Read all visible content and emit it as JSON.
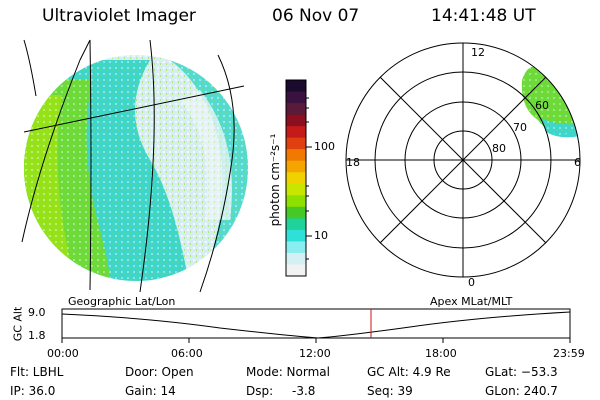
{
  "header": {
    "instrument": "Ultraviolet Imager",
    "date": "06 Nov 07",
    "time": "14:41:48 UT"
  },
  "colorbar": {
    "unit_label": "photon cm⁻²s⁻¹",
    "ticks": [
      "100",
      "10"
    ],
    "scale": "log",
    "colors": [
      "#1a0a2e",
      "#3a1240",
      "#5a1a3a",
      "#8b0f1f",
      "#c41a1a",
      "#e04010",
      "#f07a00",
      "#f5a500",
      "#f0d200",
      "#c8e600",
      "#8ee000",
      "#46c826",
      "#1ed29a",
      "#2ee0d8",
      "#8aeef0",
      "#d4f0f4",
      "#f2f2f2"
    ]
  },
  "polar": {
    "mlt_labels": {
      "top": "12",
      "left": "18",
      "right": "6",
      "bottom": "0"
    },
    "lat_labels": [
      "60",
      "70",
      "80"
    ]
  },
  "timeline": {
    "left_label": "Geographic Lat/Lon",
    "right_label": "Apex MLat/MLT",
    "axis_title": "GC Alt",
    "y_ticks": [
      "9.0",
      "1.8"
    ],
    "x_ticks": [
      "00:00",
      "06:00",
      "12:00",
      "18:00",
      "23:59"
    ],
    "marker_color": "#d01010"
  },
  "info": {
    "flt": "Flt: LBHL",
    "ip": "IP: 36.0",
    "door": "Door: Open",
    "gain": "Gain: 14",
    "mode": "Mode: Normal",
    "dsp_label": "Dsp:",
    "dsp_value": "-3.8",
    "gc_alt": "GC Alt: 4.9 Re",
    "seq": "Seq: 39",
    "glat": "GLat: −53.3",
    "glon": "GLon: 240.7"
  }
}
